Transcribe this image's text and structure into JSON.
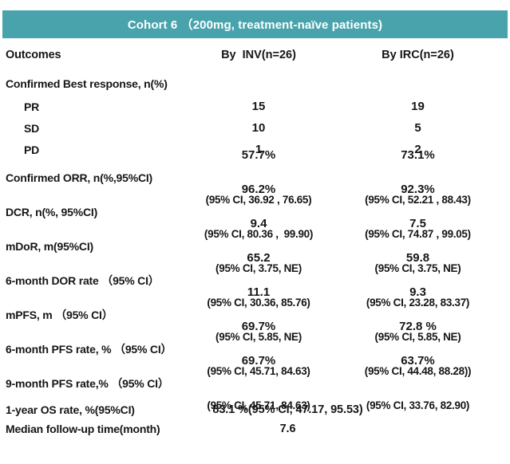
{
  "colors": {
    "header_bg": "#49A3AC",
    "header_text": "#FFFFFF",
    "body_text": "#161616"
  },
  "title_bar": {
    "title": "Cohort 6 （200mg, treatment-naïve patients)"
  },
  "columns": {
    "outcomes": "Outcomes",
    "inv": "By  INV(n=26)",
    "irc": "By IRC(n=26)"
  },
  "table": {
    "rows": [
      {
        "label": "Confirmed Best response, n(%)"
      },
      {
        "label": "PR",
        "inv": "15",
        "irc": "19"
      },
      {
        "label": "SD",
        "inv": "10",
        "irc": "5"
      },
      {
        "label": "PD",
        "inv": "1",
        "irc": "2"
      },
      {
        "label": "Confirmed ORR, n(%,95%CI)",
        "inv_value": "57.7%",
        "inv_ci": "(95% CI, 36.92 , 76.65)",
        "irc_value": "73.1%",
        "irc_ci": "(95% CI, 52.21 , 88.43)"
      },
      {
        "label": "DCR, n(%, 95%CI)",
        "inv_value": "96.2%",
        "inv_ci": "(95% CI, 80.36 ,  99.90)",
        "irc_value": "92.3%",
        "irc_ci": "(95% CI, 74.87 , 99.05)"
      },
      {
        "label": "mDoR, m(95%CI)",
        "inv_value": "9.4",
        "inv_ci": "(95% CI, 3.75, NE)",
        "irc_value": "7.5",
        "irc_ci": "(95% CI, 3.75, NE)"
      },
      {
        "label": "6-month DOR rate （95% CI）",
        "inv_value": "65.2",
        "inv_ci": "(95% CI, 30.36, 85.76)",
        "irc_value": "59.8",
        "irc_ci": "(95% CI, 23.28, 83.37)"
      },
      {
        "label": "mPFS, m （95% CI）",
        "inv_value": "11.1",
        "inv_ci": "(95% CI, 5.85, NE)",
        "irc_value": "9.3",
        "irc_ci": "(95% CI, 5.85, NE)"
      },
      {
        "label": "6-month PFS rate, % （95% CI）",
        "inv_value": "69.7%",
        "inv_ci": "(95% CI, 45.71, 84.63)",
        "irc_value": "72.8 %",
        "irc_ci": "(95% CI, 44.48, 88.28))"
      },
      {
        "label": "9-month PFS rate,% （95% CI）",
        "inv_value": "69.7%",
        "inv_ci": "(95% CI, 45.71, 84.63)",
        "irc_value": "63.7%",
        "irc_ci": "(95% CI, 33.76, 82.90)"
      },
      {
        "label": "1-year OS rate, %(95%CI)",
        "value": "83.1 %(95% CI, 47.17, 95.53)"
      },
      {
        "label": "Median follow-up time(month)",
        "value": "7.6"
      }
    ]
  }
}
